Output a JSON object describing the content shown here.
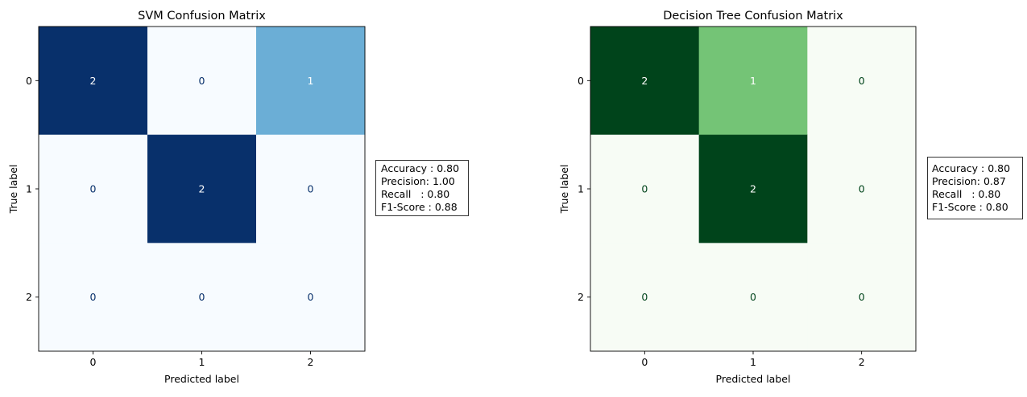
{
  "chart_data": [
    {
      "type": "heatmap",
      "title": "SVM Confusion Matrix",
      "xlabel": "Predicted label",
      "ylabel": "True label",
      "x_ticks": [
        "0",
        "1",
        "2"
      ],
      "y_ticks": [
        "0",
        "1",
        "2"
      ],
      "values": [
        [
          2,
          0,
          1
        ],
        [
          0,
          2,
          0
        ],
        [
          0,
          0,
          0
        ]
      ],
      "colormap": "Blues",
      "colors": {
        "low": "#f7fbff",
        "mid": "#6baed6",
        "high": "#08306b"
      },
      "vmin": 0,
      "vmax": 2,
      "metrics": [
        "Accuracy : 0.80",
        "Precision: 1.00",
        "Recall   : 0.80",
        "F1-Score : 0.88"
      ]
    },
    {
      "type": "heatmap",
      "title": "Decision Tree Confusion Matrix",
      "xlabel": "Predicted label",
      "ylabel": "True label",
      "x_ticks": [
        "0",
        "1",
        "2"
      ],
      "y_ticks": [
        "0",
        "1",
        "2"
      ],
      "values": [
        [
          2,
          1,
          0
        ],
        [
          0,
          2,
          0
        ],
        [
          0,
          0,
          0
        ]
      ],
      "colormap": "Greens",
      "colors": {
        "low": "#f7fcf5",
        "mid": "#74c476",
        "high": "#00441b"
      },
      "vmin": 0,
      "vmax": 2,
      "metrics": [
        "Accuracy : 0.80",
        "Precision: 0.87",
        "Recall   : 0.80",
        "F1-Score : 0.80"
      ]
    }
  ]
}
